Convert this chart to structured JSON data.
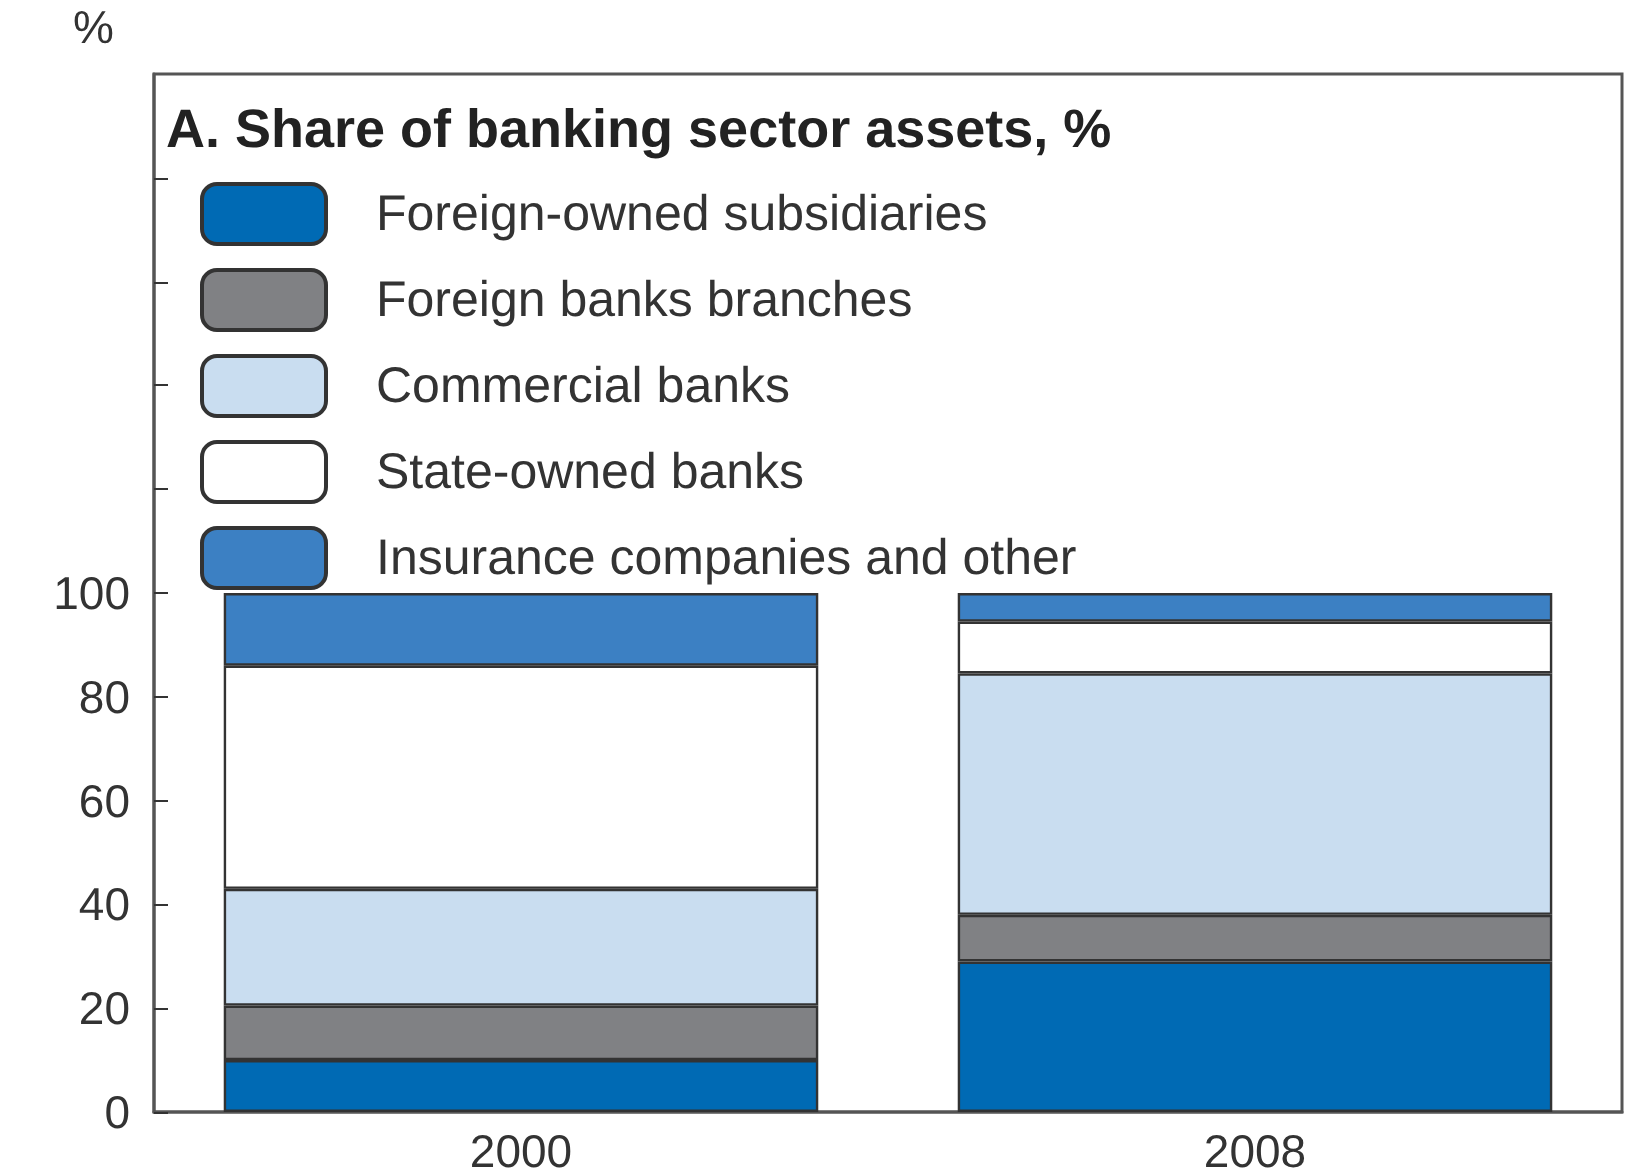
{
  "chart_data": {
    "type": "bar",
    "stacked": true,
    "title": "A. Share of banking sector assets, %",
    "ylabel": "%",
    "categories": [
      "2000",
      "2008"
    ],
    "series": [
      {
        "name": "Foreign-owned subsidiaries",
        "color": "#006ab4",
        "values": [
          10,
          29
        ]
      },
      {
        "name": "Foreign banks branches",
        "color": "#808184",
        "values": [
          10.5,
          9
        ]
      },
      {
        "name": "Commercial banks",
        "color": "#c9ddf0",
        "values": [
          22.5,
          46.5
        ]
      },
      {
        "name": "State-owned banks",
        "color": "#ffffff",
        "values": [
          43,
          10
        ]
      },
      {
        "name": "Insurance companies and other",
        "color": "#3c80c3",
        "values": [
          14,
          5.5
        ]
      }
    ],
    "ylim": [
      0,
      200
    ],
    "yticks": [
      0,
      20,
      40,
      60,
      80,
      100,
      {
        "value": 120,
        "label": null
      },
      {
        "value": 140,
        "label": null
      },
      {
        "value": 160,
        "label": null
      },
      {
        "value": 180,
        "label": null
      }
    ],
    "grid": false,
    "legend": "top left"
  }
}
